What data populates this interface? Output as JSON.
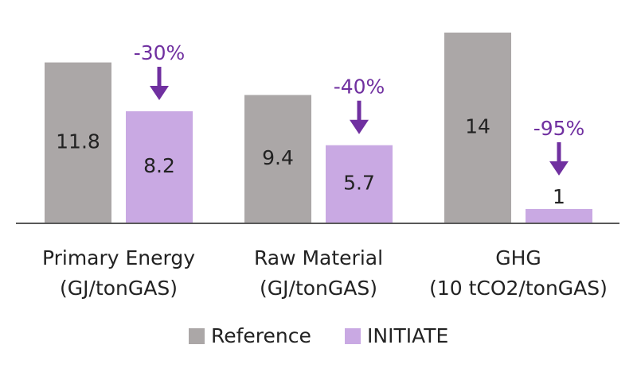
{
  "chart_data": {
    "type": "bar",
    "categories": [
      [
        "Primary Energy",
        "(GJ/tonGAS)"
      ],
      [
        "Raw Material",
        "(GJ/tonGAS)"
      ],
      [
        "GHG",
        "(10 tCO2/tonGAS)"
      ]
    ],
    "series": [
      {
        "name": "Reference",
        "color": "#aba7a7",
        "values": [
          11.8,
          9.4,
          14
        ]
      },
      {
        "name": "INITIATE",
        "color": "#c9a9e3",
        "values": [
          8.2,
          5.7,
          1
        ]
      }
    ],
    "annotations": [
      "-30%",
      "-40%",
      "-95%"
    ],
    "annotation_color": "#7030a0"
  }
}
